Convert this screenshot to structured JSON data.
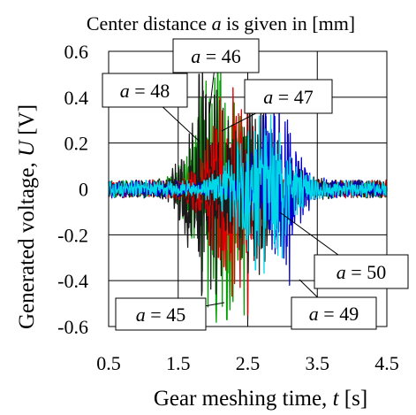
{
  "chart_data": {
    "type": "line",
    "title": "Center distance a is given in [mm]",
    "title_parts": {
      "prefix": "Center distance ",
      "var": "a",
      "suffix": " is given in [mm]"
    },
    "xlabel": "Gear meshing time, t [s]",
    "xlabel_parts": {
      "prefix": "Gear meshing time, ",
      "var": "t",
      "suffix": " [s]"
    },
    "ylabel": "Generated voltage, U [V]",
    "ylabel_parts": {
      "prefix": "Generated voltage, ",
      "var": "U",
      "suffix": " [V]"
    },
    "xlim": [
      0.5,
      4.5
    ],
    "ylim": [
      -0.6,
      0.6
    ],
    "xticks": [
      "0.5",
      "1.5",
      "2.5",
      "3.5",
      "4.5"
    ],
    "yticks": [
      "0.6",
      "0.4",
      "0.2",
      "0",
      "-0.2",
      "-0.4",
      "-0.6"
    ],
    "grid": true,
    "series": [
      {
        "name": "a = 45",
        "color": "#00a000",
        "center": 2.1,
        "amp": 0.55,
        "width": 0.4,
        "extremes": [
          [
            1.9,
            0.47
          ],
          [
            2.2,
            -0.57
          ],
          [
            2.45,
            -0.55
          ]
        ]
      },
      {
        "name": "a = 46",
        "color": "#1a1a1a",
        "center": 1.95,
        "amp": 0.45,
        "width": 0.35,
        "extremes": [
          [
            1.85,
            0.55
          ],
          [
            2.5,
            -0.57
          ]
        ]
      },
      {
        "name": "a = 47",
        "color": "#e00000",
        "center": 2.3,
        "amp": 0.42,
        "width": 0.4,
        "extremes": [
          [
            2.1,
            0.4
          ],
          [
            2.5,
            -0.55
          ]
        ]
      },
      {
        "name": "a = 48",
        "color": "#1a1a1a",
        "center": 2.6,
        "amp": 0.3,
        "width": 0.5,
        "extremes": [
          [
            1.8,
            0.5
          ]
        ]
      },
      {
        "name": "a = 49",
        "color": "#0000d0",
        "center": 2.9,
        "amp": 0.35,
        "width": 0.35,
        "extremes": [
          [
            2.95,
            0.45
          ],
          [
            3.1,
            -0.42
          ]
        ]
      },
      {
        "name": "a = 50",
        "color": "#00d8e8",
        "center": 2.7,
        "amp": 0.3,
        "width": 0.45,
        "extremes": [
          [
            2.6,
            0.25
          ],
          [
            3.0,
            -0.3
          ]
        ]
      }
    ],
    "annotations": [
      {
        "var": "a",
        "text": " = 48",
        "series": "a = 48"
      },
      {
        "var": "a",
        "text": " = 46",
        "series": "a = 46"
      },
      {
        "var": "a",
        "text": " = 47",
        "series": "a = 47"
      },
      {
        "var": "a",
        "text": " = 50",
        "series": "a = 50"
      },
      {
        "var": "a",
        "text": " = 45",
        "series": "a = 45"
      },
      {
        "var": "a",
        "text": " = 49",
        "series": "a = 49"
      }
    ]
  }
}
